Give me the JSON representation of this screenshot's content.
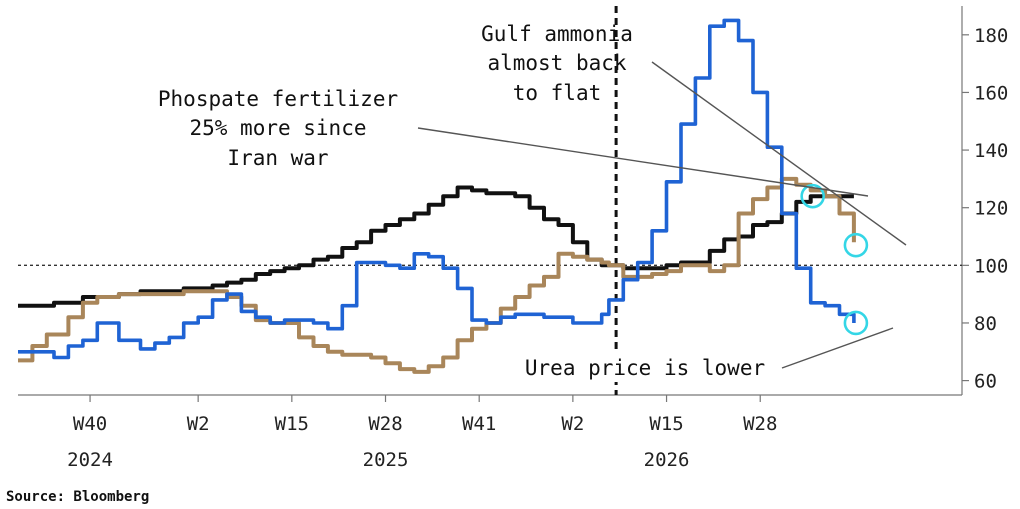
{
  "chart_data": {
    "type": "line",
    "title": "",
    "xlabel": "",
    "ylabel": "",
    "ylim": [
      55,
      190
    ],
    "yticks": [
      60,
      80,
      100,
      120,
      140,
      160,
      180
    ],
    "x_ticks": [
      {
        "week": "W40",
        "year": "2024"
      },
      {
        "week": "W2",
        "year": ""
      },
      {
        "week": "W15",
        "year": ""
      },
      {
        "week": "W28",
        "year": "2025"
      },
      {
        "week": "W41",
        "year": ""
      },
      {
        "week": "W2",
        "year": ""
      },
      {
        "week": "W15",
        "year": "2026"
      },
      {
        "week": "W28",
        "year": ""
      }
    ],
    "reference_line": 100,
    "event_marker": "2026 W8",
    "grid": false,
    "legend": "none",
    "series": [
      {
        "name": "",
        "color": "#111111",
        "x": [
          -10,
          -8,
          -6,
          -5,
          -3,
          -1,
          1,
          4,
          7,
          9,
          11,
          13,
          15,
          17,
          19,
          21,
          23,
          25,
          27,
          29,
          31,
          33,
          35,
          37,
          39,
          41,
          43,
          45,
          47,
          49,
          51,
          53,
          55,
          57,
          59,
          61,
          63,
          65,
          67,
          69,
          71,
          72,
          74,
          76,
          78,
          80,
          82,
          84,
          86,
          88,
          90,
          92,
          94,
          96,
          98,
          100,
          102,
          104,
          106
        ],
        "y": [
          86,
          86,
          86,
          87,
          87,
          89,
          89,
          90,
          91,
          91,
          91,
          92,
          92,
          93,
          94,
          95,
          97,
          98,
          99,
          100,
          102,
          103,
          106,
          108,
          112,
          114,
          116,
          118,
          121,
          124,
          127,
          126,
          125,
          125,
          124,
          120,
          116,
          114,
          108,
          102,
          100,
          100,
          99,
          99,
          99,
          100,
          101,
          101,
          105,
          109,
          110,
          114,
          115,
          118,
          122,
          124,
          124,
          124,
          124
        ]
      },
      {
        "name": "",
        "color": "#a9865a",
        "x": [
          -10,
          -8,
          -6,
          -5,
          -3,
          -1,
          1,
          4,
          7,
          9,
          11,
          13,
          15,
          17,
          19,
          21,
          23,
          25,
          27,
          29,
          31,
          33,
          35,
          37,
          39,
          41,
          43,
          45,
          47,
          49,
          51,
          53,
          55,
          57,
          59,
          61,
          63,
          65,
          67,
          69,
          71,
          72,
          74,
          76,
          78,
          80,
          82,
          84,
          86,
          88,
          90,
          92,
          94,
          96,
          98,
          100,
          102,
          104,
          106
        ],
        "y": [
          67,
          72,
          76,
          76,
          82,
          87,
          89,
          90,
          90,
          90,
          90,
          91,
          91,
          91,
          89,
          86,
          81,
          80,
          80,
          75,
          72,
          70,
          69,
          69,
          68,
          66,
          64,
          63,
          65,
          68,
          74,
          78,
          80,
          85,
          89,
          93,
          96,
          104,
          103,
          102,
          101,
          100,
          96,
          96,
          97,
          98,
          100,
          100,
          98,
          100,
          118,
          123,
          127,
          130,
          128,
          126,
          124,
          118,
          108
        ]
      },
      {
        "name": "",
        "color": "#1f63d4",
        "x": [
          -10,
          -8,
          -6,
          -5,
          -3,
          -1,
          1,
          4,
          7,
          9,
          11,
          13,
          15,
          17,
          19,
          21,
          23,
          25,
          27,
          29,
          31,
          33,
          35,
          37,
          39,
          41,
          43,
          45,
          47,
          49,
          51,
          53,
          55,
          57,
          59,
          61,
          63,
          65,
          67,
          69,
          71,
          72,
          74,
          76,
          78,
          80,
          82,
          84,
          86,
          88,
          90,
          92,
          94,
          96,
          98,
          100,
          102,
          104,
          106
        ],
        "y": [
          70,
          70,
          70,
          68,
          72,
          74,
          80,
          74,
          71,
          73,
          75,
          80,
          82,
          88,
          90,
          84,
          82,
          80,
          81,
          81,
          80,
          78,
          86,
          101,
          101,
          100,
          99,
          104,
          103,
          99,
          92,
          81,
          80,
          82,
          83,
          83,
          82,
          82,
          80,
          80,
          83,
          88,
          95,
          101,
          112,
          129,
          149,
          165,
          183,
          185,
          178,
          160,
          141,
          118,
          99,
          87,
          86,
          83,
          80
        ]
      }
    ],
    "annotations": [
      {
        "lines": [
          "Gulf ammonia",
          "almost back",
          "to flat"
        ]
      },
      {
        "lines": [
          "Phospate fertilizer",
          "25% more since",
          "Iran war"
        ]
      },
      {
        "lines": [
          "Urea price is lower"
        ]
      }
    ],
    "source": "Source: Bloomberg"
  },
  "colors": {
    "black_series": "#111111",
    "tan_series": "#a9865a",
    "blue_series": "#1f63d4",
    "highlight_circle": "#34d6e6",
    "axis": "#777777"
  }
}
